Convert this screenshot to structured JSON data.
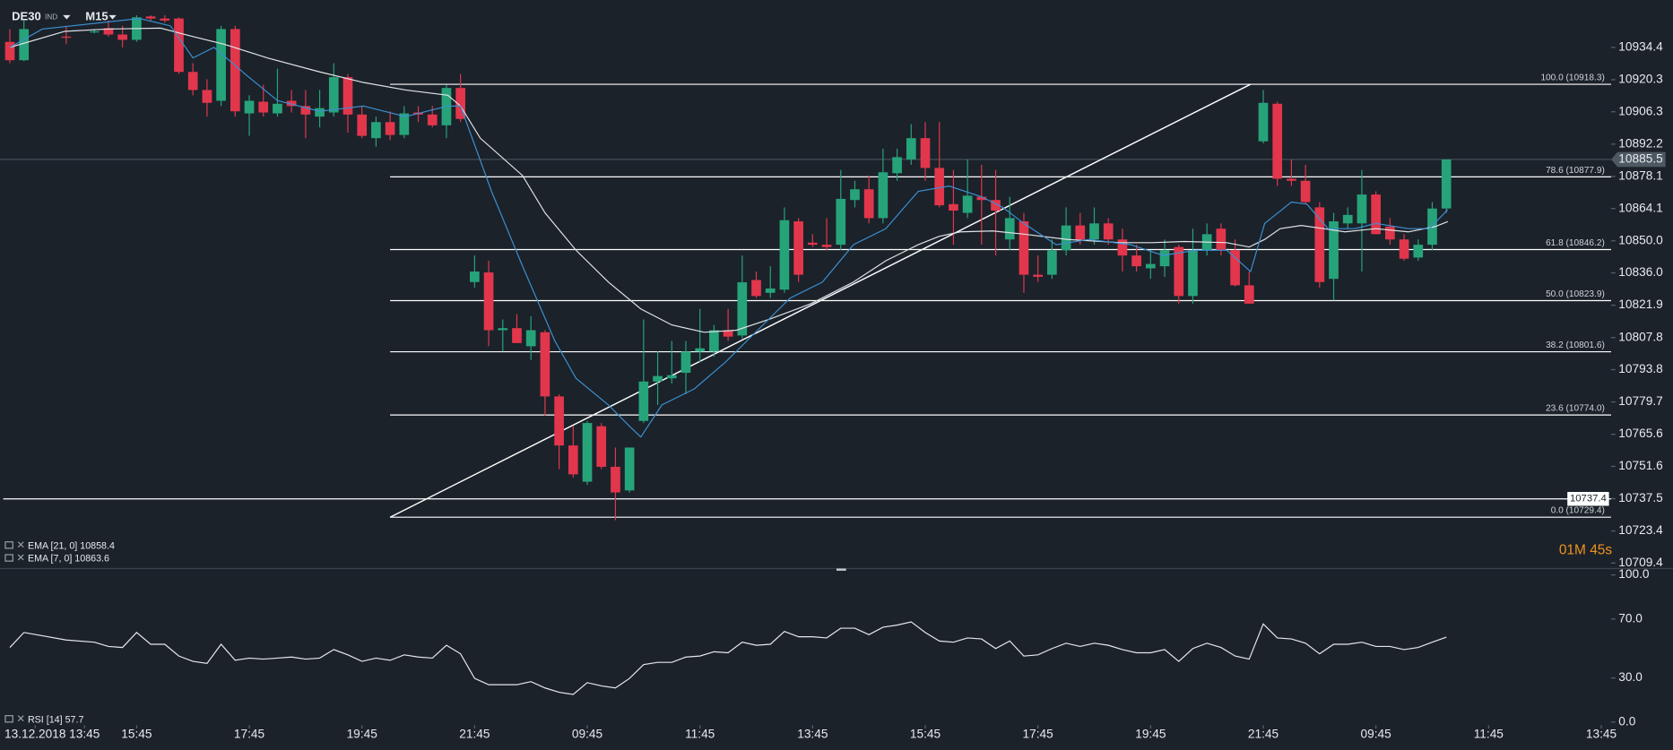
{
  "chart_data": [
    {
      "type": "candlestick",
      "symbol": "DE30",
      "instrument_type": "IND",
      "timeframe": "M15",
      "countdown": "01M 45s",
      "up_color": "#27a37a",
      "down_color": "#e2364c",
      "xlim": [
        -0.7,
        113.7
      ],
      "ylim": [
        10707,
        10955
      ],
      "xticks": [
        {
          "value": 1.8,
          "label": "13.12.2018"
        },
        {
          "value": 5.3,
          "label": "13:45"
        },
        {
          "value": 9,
          "label": "15:45"
        },
        {
          "value": 17,
          "label": "17:45"
        },
        {
          "value": 25,
          "label": "19:45"
        },
        {
          "value": 33,
          "label": "21:45"
        },
        {
          "value": 41,
          "label": "09:45"
        },
        {
          "value": 49,
          "label": "11:45"
        },
        {
          "value": 57,
          "label": "13:45"
        },
        {
          "value": 65,
          "label": "15:45"
        },
        {
          "value": 73,
          "label": "17:45"
        },
        {
          "value": 81,
          "label": "19:45"
        },
        {
          "value": 89,
          "label": "21:45"
        },
        {
          "value": 97,
          "label": "09:45"
        },
        {
          "value": 105,
          "label": "11:45"
        },
        {
          "value": 113,
          "label": "13:45"
        }
      ],
      "yticks": [
        10934.4,
        10920.3,
        10906.3,
        10892.2,
        10878.1,
        10864.1,
        {
          "value": 10850,
          "label": "10850.0"
        },
        {
          "value": 10836,
          "label": "10836.0"
        },
        10821.9,
        10807.8,
        10793.8,
        10779.7,
        10765.6,
        10751.6,
        10737.5,
        10723.4,
        10709.4
      ],
      "x": [
        0,
        1,
        4,
        6,
        7,
        8,
        9,
        10,
        11,
        12,
        13,
        14,
        15,
        16,
        17,
        18,
        19,
        20,
        21,
        22,
        23,
        24,
        25,
        26,
        27,
        28,
        29,
        30,
        31,
        32,
        33,
        34,
        35,
        36,
        37,
        38,
        39,
        40,
        41,
        42,
        43,
        44,
        45,
        46,
        47,
        48,
        49,
        50,
        51,
        52,
        53,
        54,
        55,
        56,
        57,
        58,
        59,
        60,
        61,
        62,
        63,
        64,
        65,
        66,
        67,
        68,
        69,
        70,
        71,
        72,
        73,
        74,
        75,
        76,
        77,
        78,
        79,
        80,
        81,
        82,
        83,
        84,
        85,
        86,
        87,
        88,
        89,
        90,
        91,
        92,
        93,
        94,
        95,
        96,
        97,
        98,
        99,
        100,
        101,
        102
      ],
      "open": [
        10936.8,
        10928.8,
        10939.1,
        10941.4,
        10942.8,
        10940.0,
        10937.7,
        10947.9,
        10947.0,
        10947.0,
        10923.7,
        10915.8,
        10911.1,
        10942.4,
        10905.6,
        10910.7,
        10905.6,
        10911.1,
        10908.8,
        10904.2,
        10906.0,
        10921.4,
        10905.1,
        10894.8,
        10901.8,
        10896.2,
        10906.0,
        10905.1,
        10900.4,
        10916.7,
        10832.0,
        10836.2,
        10811.0,
        10811.9,
        10804.0,
        10810.1,
        10782.1,
        10760.7,
        10744.9,
        10769.1,
        10751.4,
        10741.1,
        10771.4,
        10788.6,
        10790.0,
        10792.4,
        10801.7,
        10801.7,
        10811.0,
        10808.7,
        10832.9,
        10827.3,
        10828.7,
        10858.5,
        10849.2,
        10848.3,
        10848.3,
        10867.8,
        10872.5,
        10859.9,
        10879.5,
        10885.5,
        10894.8,
        10881.8,
        10866.0,
        10862.2,
        10869.2,
        10867.8,
        10850.6,
        10858.5,
        10835.2,
        10835.2,
        10845.9,
        10856.7,
        10850.6,
        10857.6,
        10850.6,
        10843.6,
        10838.0,
        10838.9,
        10847.3,
        10825.9,
        10845.9,
        10855.3,
        10845.9,
        10830.6,
        10893.4,
        10909.8,
        10877.1,
        10876.2,
        10864.6,
        10833.4,
        10857.6,
        10857.6,
        10870.2,
        10856.2,
        10850.6,
        10842.7,
        10848.3,
        10864.1
      ],
      "high": [
        10942.4,
        10946.1,
        10943.8,
        10942.4,
        10946.1,
        10943.8,
        10948.4,
        10948.4,
        10948.4,
        10947.5,
        10927.5,
        10920.5,
        10943.8,
        10943.8,
        10913.5,
        10918.1,
        10925.1,
        10915.8,
        10915.8,
        10915.8,
        10927.5,
        10922.8,
        10908.8,
        10904.2,
        10906.5,
        10908.8,
        10908.8,
        10908.8,
        10918.1,
        10922.8,
        10843.6,
        10841.3,
        10815.7,
        10818.0,
        10817.1,
        10811.0,
        10783.0,
        10769.1,
        10771.4,
        10770.5,
        10759.8,
        10759.8,
        10815.7,
        10801.7,
        10806.3,
        10806.3,
        10820.3,
        10813.3,
        10820.3,
        10843.6,
        10836.6,
        10838.9,
        10864.6,
        10859.9,
        10852.9,
        10859.9,
        10880.9,
        10876.2,
        10878.5,
        10890.2,
        10890.2,
        10900.9,
        10901.8,
        10901.8,
        10880.9,
        10885.5,
        10883.2,
        10880.9,
        10869.2,
        10862.2,
        10843.6,
        10850.6,
        10864.6,
        10862.2,
        10864.6,
        10859.9,
        10855.3,
        10848.3,
        10845.9,
        10850.6,
        10848.3,
        10855.3,
        10857.6,
        10857.6,
        10850.6,
        10836.6,
        10915.8,
        10910.7,
        10885.5,
        10883.2,
        10866.9,
        10862.2,
        10864.6,
        10880.9,
        10871.6,
        10859.9,
        10852.9,
        10850.6,
        10866.9,
        10885.5
      ],
      "low": [
        10927.5,
        10928.4,
        10935.8,
        10940.5,
        10939.1,
        10934.4,
        10936.8,
        10946.1,
        10945.2,
        10922.8,
        10913.5,
        10904.2,
        10908.8,
        10904.2,
        10895.8,
        10904.2,
        10904.2,
        10906.0,
        10894.8,
        10899.5,
        10904.2,
        10897.2,
        10894.8,
        10891.1,
        10893.9,
        10894.8,
        10901.8,
        10899.5,
        10894.8,
        10901.8,
        10829.6,
        10804.0,
        10801.7,
        10805.4,
        10798.0,
        10773.7,
        10750.4,
        10746.7,
        10743.5,
        10750.4,
        10728.1,
        10740.2,
        10770.5,
        10778.4,
        10787.7,
        10783.1,
        10797.0,
        10799.4,
        10806.3,
        10807.3,
        10825.0,
        10825.0,
        10827.3,
        10832.0,
        10847.3,
        10845.9,
        10845.9,
        10864.6,
        10857.6,
        10857.6,
        10876.2,
        10883.2,
        10876.2,
        10864.6,
        10848.3,
        10859.9,
        10848.3,
        10843.6,
        10845.9,
        10827.3,
        10832.0,
        10833.4,
        10843.6,
        10848.3,
        10848.3,
        10848.3,
        10836.6,
        10836.6,
        10833.4,
        10834.3,
        10822.6,
        10822.6,
        10843.6,
        10843.6,
        10830.1,
        10822.6,
        10892.5,
        10873.9,
        10873.9,
        10866.0,
        10829.6,
        10824.0,
        10855.3,
        10836.6,
        10852.9,
        10848.3,
        10841.3,
        10841.3,
        10845.9,
        10862.2
      ],
      "close": [
        10928.8,
        10942.4,
        10938.6,
        10941.4,
        10940.0,
        10937.7,
        10947.5,
        10947.0,
        10946.1,
        10923.7,
        10915.8,
        10910.2,
        10942.4,
        10906.5,
        10911.1,
        10906.0,
        10909.8,
        10908.8,
        10905.1,
        10907.9,
        10921.4,
        10905.1,
        10895.8,
        10901.8,
        10896.2,
        10905.6,
        10905.1,
        10900.4,
        10916.7,
        10903.2,
        10836.6,
        10811.0,
        10811.9,
        10805.4,
        10811.0,
        10782.1,
        10760.7,
        10748.1,
        10770.5,
        10751.4,
        10740.2,
        10759.8,
        10788.6,
        10791.0,
        10791.4,
        10801.7,
        10803.1,
        10811.0,
        10808.2,
        10831.9,
        10825.9,
        10829.2,
        10859.0,
        10835.2,
        10848.3,
        10847.3,
        10868.3,
        10872.5,
        10859.9,
        10879.9,
        10886.5,
        10894.8,
        10881.8,
        10865.5,
        10863.2,
        10869.7,
        10867.8,
        10863.2,
        10859.9,
        10835.2,
        10834.3,
        10845.9,
        10856.7,
        10850.6,
        10857.6,
        10850.6,
        10843.6,
        10838.9,
        10839.9,
        10845.9,
        10825.9,
        10845.9,
        10852.9,
        10845.9,
        10830.6,
        10822.6,
        10910.2,
        10877.1,
        10876.2,
        10866.9,
        10832.0,
        10858.5,
        10861.3,
        10870.2,
        10852.9,
        10850.6,
        10842.2,
        10848.3,
        10864.1,
        10885.5
      ],
      "series": [
        {
          "name": "EMA [21, 0] 10858.4",
          "color": "#dfe3e6",
          "x": [
            0,
            3.9,
            6.9,
            10.7,
            13.0,
            15.2,
            18.3,
            22.0,
            25.1,
            28.1,
            31.1,
            32.0,
            33.4,
            36.4,
            38.0,
            40.2,
            42.5,
            44.8,
            47.0,
            49.3,
            51.6,
            53.9,
            56.9,
            59.9,
            62.2,
            64.5,
            66.0,
            67.5,
            69.8,
            72.0,
            75.1,
            78.9,
            81.1,
            83.4,
            86.4,
            88.0,
            89.1,
            90.2,
            91.7,
            93.3,
            94.8,
            97.0,
            99.3,
            101.2,
            102.1
          ],
          "values": [
            10934.4,
            10941.4,
            10942.4,
            10942.8,
            10939.1,
            10935.8,
            10929.8,
            10923.7,
            10919.1,
            10915.8,
            10913.5,
            10908.8,
            10894.8,
            10878.5,
            10862.2,
            10845.9,
            10832.0,
            10820.3,
            10813.3,
            10810.1,
            10811.0,
            10815.7,
            10822.6,
            10832.0,
            10841.3,
            10848.3,
            10852.0,
            10853.9,
            10854.3,
            10852.9,
            10850.6,
            10849.2,
            10849.2,
            10849.7,
            10849.2,
            10847.3,
            10850.6,
            10855.3,
            10856.7,
            10855.3,
            10853.9,
            10855.3,
            10853.9,
            10856.2,
            10858.4
          ]
        },
        {
          "name": "EMA [7, 0] 10863.6",
          "color": "#3c8fd0",
          "x": [
            0,
            2.3,
            9.2,
            11.4,
            13.0,
            14.5,
            16.7,
            19.0,
            22.0,
            25.1,
            28.1,
            31.1,
            32.0,
            34.2,
            36.4,
            38.7,
            40.2,
            42.5,
            44.0,
            44.8,
            46.3,
            48.6,
            50.8,
            53.1,
            55.4,
            57.7,
            59.9,
            62.2,
            64.5,
            66.7,
            69.0,
            70.5,
            72.0,
            74.3,
            76.6,
            79.6,
            81.9,
            84.2,
            86.4,
            88.1,
            89.1,
            91.0,
            92.1,
            93.6,
            95.5,
            97.0,
            99.3,
            100.8,
            102.1
          ],
          "values": [
            10934.4,
            10942.4,
            10947.0,
            10943.8,
            10929.8,
            10934.4,
            10922.8,
            10911.2,
            10906.5,
            10908.8,
            10904.2,
            10908.8,
            10908.8,
            10871.6,
            10839.0,
            10806.3,
            10790.0,
            10778.4,
            10769.1,
            10764.4,
            10778.4,
            10785.4,
            10797.0,
            10811.0,
            10825.0,
            10832.0,
            10848.3,
            10855.3,
            10871.6,
            10873.9,
            10869.2,
            10864.6,
            10857.6,
            10848.3,
            10850.6,
            10848.3,
            10843.6,
            10845.9,
            10845.9,
            10836.6,
            10857.6,
            10866.9,
            10866.0,
            10855.3,
            10855.3,
            10857.6,
            10855.3,
            10855.3,
            10863.6
          ]
        }
      ],
      "fibonacci": {
        "color": "#ffffff",
        "x_start": 27,
        "levels": [
          {
            "label": "100.0 (10918.3)",
            "price": 10918.3
          },
          {
            "label": "78.6 (10877.9)",
            "price": 10877.9
          },
          {
            "label": "61.8 (10846.2)",
            "price": 10846.2
          },
          {
            "label": "50.0 (10823.9)",
            "price": 10823.9
          },
          {
            "label": "38.2 (10801.6)",
            "price": 10801.6
          },
          {
            "label": "23.6 (10774.0)",
            "price": 10774.0
          },
          {
            "label": "0.0 (10729.4)",
            "price": 10729.4
          }
        ]
      },
      "trendline": {
        "x": [
          27,
          88.1
        ],
        "y": [
          10729.4,
          10918.3
        ]
      },
      "horizontal_line": 10737.4,
      "last_price": 10885.5
    },
    {
      "type": "line",
      "ylim": [
        0,
        100
      ],
      "yticks": [
        {
          "value": 100,
          "label": "100.0"
        },
        {
          "value": 70,
          "label": "70.0"
        },
        {
          "value": 30,
          "label": "30.0"
        },
        {
          "value": 0,
          "label": "0.0"
        }
      ],
      "series": [
        {
          "name": "RSI [14] 57.7",
          "color": "#e6e8ea",
          "values": [
            50.7,
            60.9,
            55.8,
            54.3,
            51.4,
            50.7,
            60.9,
            52.9,
            52.9,
            44.9,
            41.3,
            39.9,
            52.9,
            42.0,
            43.5,
            42.8,
            43.5,
            44.2,
            42.8,
            43.5,
            49.3,
            45.7,
            41.3,
            43.5,
            42.0,
            45.7,
            44.2,
            43.5,
            52.2,
            46.4,
            29.7,
            25.4,
            25.4,
            25.4,
            27.5,
            23.2,
            20.3,
            18.8,
            26.8,
            24.6,
            23.2,
            29.7,
            39.1,
            40.6,
            40.6,
            44.2,
            44.9,
            47.8,
            47.1,
            54.3,
            52.2,
            52.9,
            61.6,
            58.0,
            58.0,
            57.2,
            63.8,
            63.8,
            59.4,
            64.5,
            65.9,
            68.1,
            60.9,
            55.1,
            54.3,
            57.2,
            56.5,
            50.0,
            55.1,
            44.9,
            45.7,
            50.0,
            53.6,
            51.4,
            53.6,
            52.2,
            49.3,
            47.1,
            47.1,
            49.3,
            41.3,
            50.0,
            53.6,
            50.7,
            44.9,
            42.8,
            66.7,
            57.2,
            56.5,
            53.6,
            46.4,
            52.9,
            52.9,
            54.3,
            51.4,
            51.4,
            49.3,
            50.7,
            54.3,
            57.7
          ]
        }
      ]
    }
  ]
}
